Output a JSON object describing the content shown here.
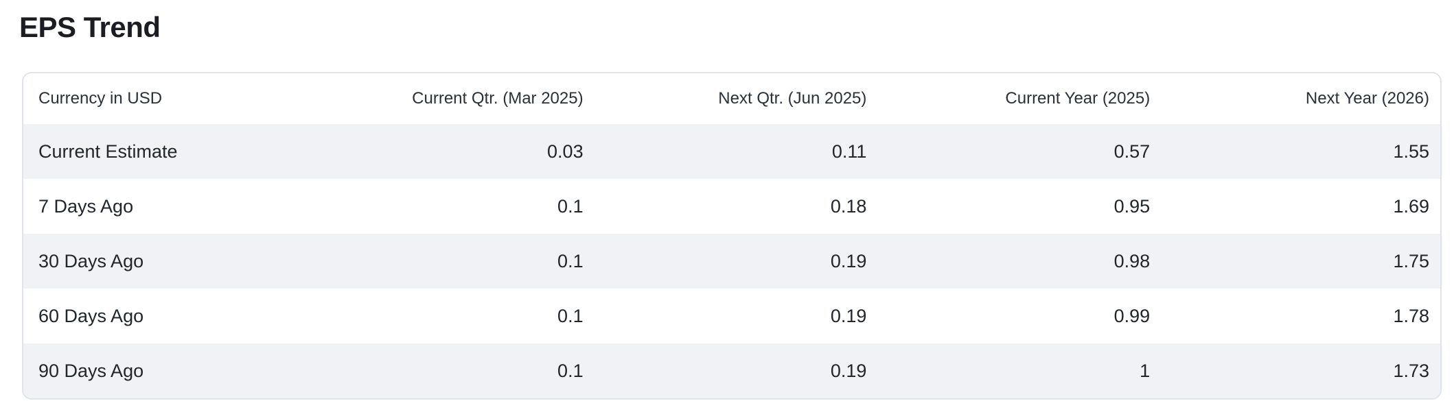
{
  "title": "EPS Trend",
  "colors": {
    "title_text": "#1b1d23",
    "body_text": "#21262c",
    "header_text": "#2a3138",
    "stripe_row_bg": "#f0f2f5",
    "card_border": "#e0e4e9",
    "page_bg": "#ffffff"
  },
  "table": {
    "columns": [
      "Currency in USD",
      "Current Qtr. (Mar 2025)",
      "Next Qtr. (Jun 2025)",
      "Current Year (2025)",
      "Next Year (2026)"
    ],
    "rows": [
      {
        "label": "Current Estimate",
        "values": [
          "0.03",
          "0.11",
          "0.57",
          "1.55"
        ]
      },
      {
        "label": "7 Days Ago",
        "values": [
          "0.1",
          "0.18",
          "0.95",
          "1.69"
        ]
      },
      {
        "label": "30 Days Ago",
        "values": [
          "0.1",
          "0.19",
          "0.98",
          "1.75"
        ]
      },
      {
        "label": "60 Days Ago",
        "values": [
          "0.1",
          "0.19",
          "0.99",
          "1.78"
        ]
      },
      {
        "label": "90 Days Ago",
        "values": [
          "0.1",
          "0.19",
          "1",
          "1.73"
        ]
      }
    ]
  }
}
